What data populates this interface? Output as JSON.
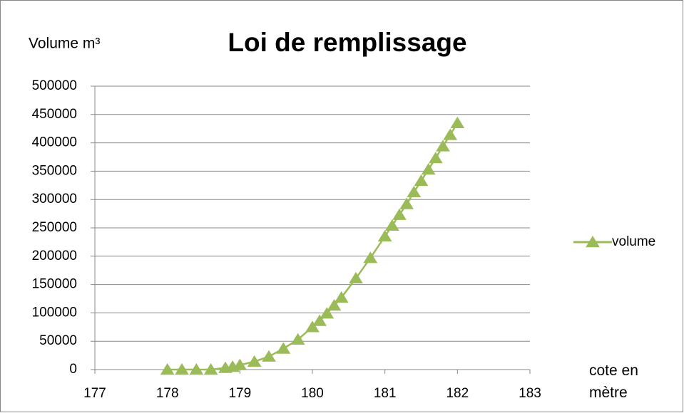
{
  "chart_data": {
    "type": "scatter",
    "title": "Loi de remplissage",
    "y_label": "Volume m³",
    "x_label": "cote en mètre",
    "x": [
      178,
      178.2,
      178.4,
      178.6,
      178.8,
      178.9,
      179,
      179.2,
      179.4,
      179.6,
      179.8,
      180,
      180.1,
      180.2,
      180.3,
      180.4,
      180.6,
      180.8,
      181,
      181.1,
      181.2,
      181.3,
      181.4,
      181.5,
      181.6,
      181.7,
      181.8,
      181.9,
      182
    ],
    "series": [
      {
        "name": "volume",
        "color": "#9bbb59",
        "values": [
          0,
          0,
          0,
          0,
          3000,
          5000,
          8000,
          14000,
          23000,
          37000,
          53000,
          75000,
          86000,
          99000,
          113000,
          127000,
          161000,
          197000,
          235000,
          254000,
          273000,
          292000,
          313000,
          333000,
          353000,
          373000,
          394000,
          414000,
          435000
        ]
      }
    ],
    "xlim": [
      177,
      183
    ],
    "xticks": [
      177,
      178,
      179,
      180,
      181,
      182,
      183
    ],
    "ylim": [
      0,
      500000
    ],
    "yticks": [
      0,
      50000,
      100000,
      150000,
      200000,
      250000,
      300000,
      350000,
      400000,
      450000,
      500000
    ],
    "grid": true,
    "legend": "right"
  }
}
